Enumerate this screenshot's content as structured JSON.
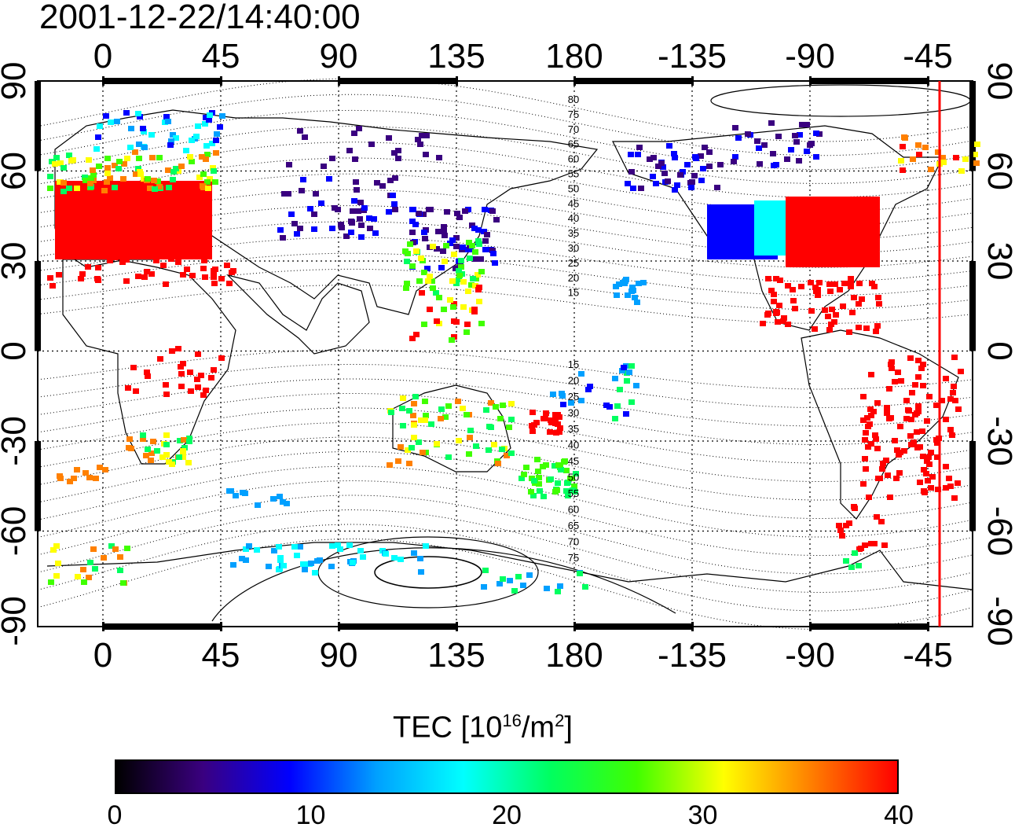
{
  "timestamp": "2001-12-22/14:40:00",
  "map": {
    "top_lon_ticks": [
      "0",
      "45",
      "90",
      "135",
      "180",
      "-135",
      "-90",
      "-45"
    ],
    "bottom_lon_ticks": [
      "0",
      "45",
      "90",
      "135",
      "180",
      "-135",
      "-90",
      "-45"
    ],
    "left_lat_ticks": [
      "90",
      "60",
      "30",
      "0",
      "-30",
      "-60",
      "-90"
    ],
    "right_lat_ticks": [
      "90",
      "60",
      "30",
      "0",
      "-30",
      "-60",
      "-90"
    ],
    "contour_labels_north": [
      "80",
      "75",
      "70",
      "65",
      "60",
      "55",
      "50",
      "45",
      "40",
      "35",
      "30",
      "25",
      "20",
      "15"
    ],
    "contour_labels_south": [
      "15",
      "20",
      "25",
      "30",
      "35",
      "40",
      "45",
      "50",
      "55",
      "60",
      "65",
      "70",
      "75"
    ],
    "terminator_color": "#ff0000"
  },
  "colorbar": {
    "title_prefix": "TEC  [10",
    "title_exp1": "16",
    "title_mid": "/m",
    "title_exp2": "2",
    "title_suffix": "]",
    "ticks": [
      "0",
      "10",
      "20",
      "30",
      "40"
    ],
    "min": 0,
    "max": 40,
    "colors": [
      "#000000",
      "#3a0080",
      "#0000ff",
      "#00a0ff",
      "#00ffff",
      "#00ff60",
      "#40ff00",
      "#ffff00",
      "#ff8000",
      "#ff0000"
    ]
  }
}
